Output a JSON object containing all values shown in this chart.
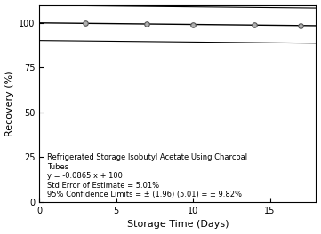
{
  "title": "Refrigerated Storage Isobutyl Acetate Using Charcoal\nTubes",
  "xlabel": "Storage Time (Days)",
  "ylabel": "Recovery (%)",
  "equation": "y = -0.0865 x + 100",
  "std_error": "Std Error of Estimate = 5.01%",
  "conf_limits": "95% Confidence Limits = ± (1.96) (5.01) = ± 9.82%",
  "data_x": [
    3,
    7,
    10,
    14,
    17
  ],
  "data_y": [
    100.0,
    99.4,
    99.1,
    98.8,
    98.5
  ],
  "slope": -0.0865,
  "intercept": 100,
  "conf_band": 9.82,
  "xlim": [
    0,
    18
  ],
  "ylim": [
    0,
    110
  ],
  "yticks": [
    0,
    25,
    50,
    75,
    100
  ],
  "xticks": [
    0,
    5,
    10,
    15
  ],
  "line_color": "#000000",
  "marker_facecolor": "#b0b0b0",
  "marker_edgecolor": "#555555",
  "background_color": "#ffffff",
  "annotation_fontsize": 6.0,
  "axis_label_fontsize": 8,
  "tick_fontsize": 7
}
